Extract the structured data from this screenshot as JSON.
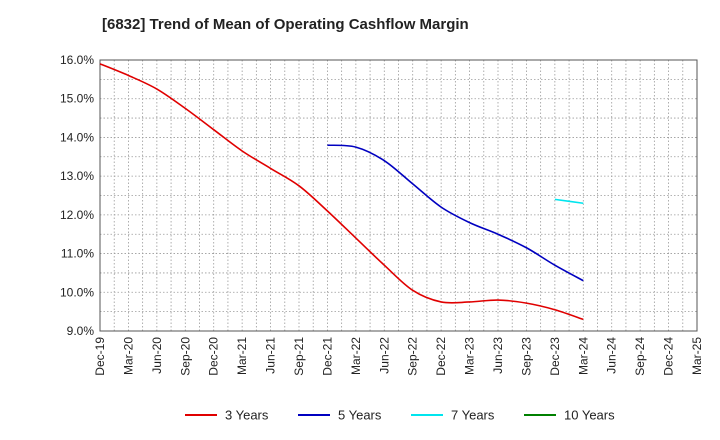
{
  "chart_data": {
    "type": "line",
    "title": "[6832]  Trend of Mean of Operating Cashflow Margin",
    "x": [
      "Dec-19",
      "Mar-20",
      "Jun-20",
      "Sep-20",
      "Dec-20",
      "Mar-21",
      "Jun-21",
      "Sep-21",
      "Dec-21",
      "Mar-22",
      "Jun-22",
      "Sep-22",
      "Dec-22",
      "Mar-23",
      "Jun-23",
      "Sep-23",
      "Dec-23",
      "Mar-24",
      "Jun-24",
      "Sep-24",
      "Dec-24",
      "Mar-25"
    ],
    "yticks": [
      "16.0%",
      "15.0%",
      "14.0%",
      "13.0%",
      "12.0%",
      "11.0%",
      "10.0%",
      "9.0%"
    ],
    "ylim": [
      9.0,
      16.0
    ],
    "grid": true,
    "legend_position": "bottom",
    "series": [
      {
        "name": "3 Years",
        "color": "#e00000",
        "values": [
          15.9,
          15.6,
          15.25,
          14.75,
          14.2,
          13.65,
          13.2,
          12.75,
          12.1,
          11.4,
          10.7,
          10.05,
          9.75,
          9.75,
          9.8,
          9.72,
          9.55,
          9.3,
          null,
          null,
          null,
          null
        ]
      },
      {
        "name": "5 Years",
        "color": "#0000c0",
        "values": [
          null,
          null,
          null,
          null,
          null,
          null,
          null,
          null,
          13.8,
          13.75,
          13.4,
          12.8,
          12.2,
          11.8,
          11.5,
          11.15,
          10.7,
          10.3,
          null,
          null,
          null,
          null
        ]
      },
      {
        "name": "7 Years",
        "color": "#00e5ee",
        "values": [
          null,
          null,
          null,
          null,
          null,
          null,
          null,
          null,
          null,
          null,
          null,
          null,
          null,
          null,
          null,
          null,
          12.4,
          12.3,
          null,
          null,
          null,
          null
        ]
      },
      {
        "name": "10 Years",
        "color": "#008000",
        "values": [
          null,
          null,
          null,
          null,
          null,
          null,
          null,
          null,
          null,
          null,
          null,
          null,
          null,
          null,
          null,
          null,
          null,
          null,
          null,
          null,
          null,
          null
        ]
      }
    ]
  }
}
